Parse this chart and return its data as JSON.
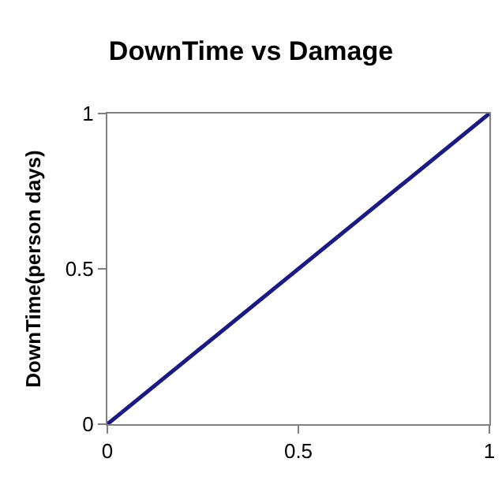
{
  "chart_data": {
    "type": "line",
    "title": "DownTime vs Damage",
    "ylabel": "DownTime(person days)",
    "x": [
      0,
      1
    ],
    "series": [
      {
        "color": "#1a1a80",
        "values": [
          0,
          1
        ]
      }
    ],
    "xlim": [
      0,
      1
    ],
    "ylim": [
      0,
      1
    ],
    "xticks": [
      0,
      0.5,
      1
    ],
    "yticks": [
      0,
      0.5,
      1
    ],
    "marker": "none",
    "line_style": "solid"
  }
}
